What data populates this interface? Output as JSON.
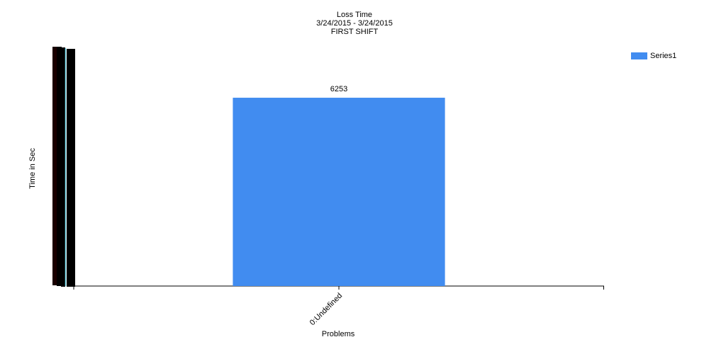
{
  "chart_data": {
    "type": "bar",
    "title_lines": [
      "Loss Time",
      "3/24/2015 - 3/24/2015",
      "FIRST SHIFT"
    ],
    "xlabel": "Problems",
    "ylabel": "Time in Sec",
    "categories": [
      "0:Undefined"
    ],
    "series": [
      {
        "name": "Series1",
        "values": [
          6253
        ],
        "color": "#418CF0"
      }
    ],
    "data_labels": [
      "6253"
    ],
    "ylim": [
      0,
      7500
    ],
    "legend_position": "top-right",
    "grid": false
  }
}
